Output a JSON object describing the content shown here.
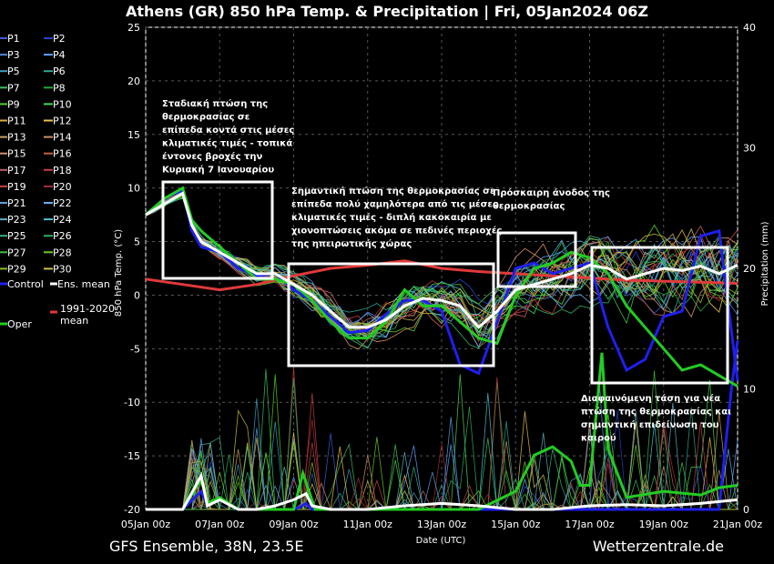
{
  "chart_data": {
    "type": "line",
    "title": "Athens  (GR)  850 hPa Temp. & Precipitation | Fri, 05Jan2024 06Z",
    "ylabel": "850 hPa Temp. (°C)",
    "y2label": "Precipitation (mm)",
    "xlabel": "Date (UTC)",
    "x_ticks": [
      "05Jan 00z",
      "07Jan 00z",
      "09Jan 00z",
      "11Jan 00z",
      "13Jan 00z",
      "15Jan 00z",
      "17Jan 00z",
      "19Jan 00z",
      "21Jan 00z"
    ],
    "ylim": [
      -20,
      25
    ],
    "y_ticks": [
      "25",
      "20",
      "15",
      "10",
      "5",
      "0",
      "-5",
      "-10",
      "-15",
      "-20"
    ],
    "y2lim": [
      0,
      40
    ],
    "y2_ticks": [
      "40",
      "30",
      "20",
      "10",
      "0"
    ],
    "x_hours_range": [
      0,
      384
    ],
    "grid": true,
    "legend_placement": "left",
    "legend": {
      "members": [
        "P1",
        "P2",
        "P3",
        "P4",
        "P5",
        "P6",
        "P7",
        "P8",
        "P9",
        "P10",
        "P11",
        "P12",
        "P13",
        "P14",
        "P15",
        "P16",
        "P17",
        "P18",
        "P19",
        "P20",
        "P21",
        "P22",
        "P23",
        "P24",
        "P25",
        "P26",
        "P27",
        "P28",
        "P29",
        "P30"
      ],
      "member_colors": [
        "#3a5ad6",
        "#2244cc",
        "#4a88d8",
        "#5aa0ff",
        "#3aa0c0",
        "#2aa890",
        "#3cc060",
        "#22aa33",
        "#55d020",
        "#4ad850",
        "#d8b040",
        "#e8c050",
        "#c8a060",
        "#d09060",
        "#d09070",
        "#c86040",
        "#c06060",
        "#c84040",
        "#c04040",
        "#a83030",
        "#5aa0e0",
        "#66b0f0",
        "#5ab0c0",
        "#4ac0d0",
        "#3ab080",
        "#2ab060",
        "#44c040",
        "#66cc22",
        "#88c020",
        "#c8c040"
      ],
      "control_label": "Control",
      "mean_label": "Ens. mean",
      "climate_label": "1991-2020 mean",
      "oper_label": "Oper"
    },
    "colors": {
      "control": "#1f1fee",
      "mean": "#ffffff",
      "climate": "#e03a3a",
      "oper": "#22cc22"
    },
    "series": [
      {
        "name": "Ens. mean",
        "hours": [
          0,
          12,
          24,
          30,
          36,
          48,
          60,
          72,
          84,
          96,
          108,
          120,
          132,
          144,
          156,
          168,
          180,
          192,
          204,
          216,
          228,
          240,
          252,
          264,
          276,
          288,
          300,
          312,
          324,
          336,
          348,
          360,
          372,
          384
        ],
        "values": [
          7.5,
          8.5,
          9.5,
          6.5,
          5,
          4,
          3,
          2,
          2,
          1,
          0,
          -1.5,
          -3,
          -3,
          -2.3,
          -1,
          -0.3,
          -0.5,
          -1,
          -3,
          -1.5,
          0.5,
          1,
          1.5,
          2,
          2.8,
          2.5,
          1.5,
          2,
          2.5,
          2.3,
          2.7,
          2,
          2.8
        ]
      },
      {
        "name": "Control",
        "hours": [
          0,
          12,
          24,
          30,
          36,
          48,
          60,
          72,
          84,
          96,
          108,
          120,
          132,
          144,
          156,
          168,
          180,
          192,
          204,
          216,
          228,
          240,
          252,
          264,
          276,
          288,
          300,
          312,
          324,
          336,
          348,
          360,
          372,
          384
        ],
        "values": [
          7.5,
          9,
          9.8,
          6,
          4.5,
          4,
          2.5,
          1.8,
          2,
          0.5,
          -0.5,
          -2,
          -3.5,
          -3.3,
          -1.8,
          -0.5,
          -0.5,
          -1.5,
          -6.5,
          -7.3,
          -2.5,
          2.5,
          3,
          2,
          2.5,
          3,
          -3,
          -7,
          -6,
          -2,
          -1.5,
          5.5,
          6,
          -8
        ]
      },
      {
        "name": "Oper",
        "hours": [
          0,
          12,
          24,
          30,
          36,
          48,
          60,
          72,
          84,
          96,
          108,
          120,
          132,
          144,
          156,
          168,
          180,
          192,
          204,
          216,
          228,
          240,
          252,
          264,
          276,
          288,
          300,
          312,
          324,
          336,
          348,
          360,
          372,
          384
        ],
        "values": [
          7.5,
          9,
          10,
          7,
          6,
          4.5,
          3,
          1.5,
          1.5,
          1,
          -0.5,
          -2.5,
          -4,
          -4,
          -2.5,
          0.5,
          -1,
          -1,
          -2.5,
          -4,
          -4.5,
          0,
          2.5,
          3,
          4,
          3.5,
          2,
          -1,
          -3,
          -5,
          -7,
          -6.5,
          -7.5,
          -8.5
        ]
      },
      {
        "name": "1991-2020 mean",
        "hours": [
          0,
          24,
          48,
          72,
          96,
          120,
          144,
          168,
          192,
          216,
          240,
          264,
          288,
          312,
          336,
          360,
          384
        ],
        "values": [
          1.5,
          1,
          0.5,
          1,
          1.8,
          2.5,
          2.8,
          3.2,
          2.5,
          2.2,
          2,
          1.8,
          1.6,
          1.4,
          1.3,
          1.2,
          1.1
        ]
      }
    ],
    "precip": {
      "mean": {
        "hours": [
          0,
          24,
          36,
          40,
          48,
          60,
          72,
          84,
          96,
          104,
          108,
          120,
          144,
          168,
          192,
          216,
          240,
          264,
          288,
          312,
          336,
          360,
          384
        ],
        "values": [
          0,
          0,
          2.8,
          0.3,
          0.8,
          0,
          0,
          0.3,
          0.8,
          1.3,
          0.3,
          0,
          0,
          0.3,
          0.5,
          0.3,
          0,
          0,
          0.3,
          0.4,
          0.3,
          0.5,
          0.8
        ]
      },
      "control": {
        "hours": [
          0,
          24,
          36,
          40,
          48,
          60,
          72,
          84,
          96,
          100,
          104,
          108,
          120,
          144,
          168,
          192,
          216,
          240,
          264,
          288,
          312,
          336,
          360,
          372,
          380,
          384
        ],
        "values": [
          0,
          0,
          1.5,
          0.3,
          0.8,
          0,
          0,
          0,
          0,
          0.2,
          0.5,
          0,
          0,
          0,
          0,
          0,
          0,
          0,
          0,
          0,
          0,
          0,
          0,
          0,
          10,
          14
        ]
      },
      "oper": {
        "hours": [
          0,
          24,
          36,
          40,
          48,
          60,
          72,
          84,
          96,
          102,
          106,
          110,
          120,
          144,
          168,
          192,
          216,
          240,
          252,
          264,
          276,
          282,
          288,
          296,
          300,
          312,
          336,
          360,
          372,
          384
        ],
        "values": [
          0,
          0,
          2.5,
          0.5,
          1,
          0,
          0,
          0,
          0,
          3,
          1.5,
          0,
          0,
          0,
          0,
          0,
          0,
          1.5,
          4.5,
          5.2,
          4,
          2,
          2,
          13,
          5,
          1,
          1.5,
          1.2,
          1.8,
          2
        ]
      }
    },
    "annotations": [
      [
        "Σταδιακή πτώση της",
        "θερμοκρασίας σε",
        "επίπεδα κοντά στις μέσες",
        "κλιματικές τιμές - τοπικά",
        "έντονες βροχές την",
        "Κυριακή 7 Ιανουαρίου"
      ],
      [
        "Σημαντική πτώση της θερμοκρασίας σε",
        "επίπεδα πολύ χαμηλότερα από τις μέσες",
        "κλιματικές τιμές - διπλή κακοκαιρία με",
        "χιονοπτώσεις ακόμα σε πεδινές περιοχές",
        "της ηπειρωτικής χώρας"
      ],
      [
        "Πρόσκαιρη άνοδος της",
        "θερμοκρασίας"
      ],
      [
        "Διαφαινόμενη τάση για νέα",
        "πτώση της θερμοκρασίας και",
        "σημαντική επιδείνωση του",
        "καιρού"
      ]
    ]
  },
  "footer": {
    "left": "GFS Ensemble, 38N, 23.5E",
    "right": "Wetterzentrale.de"
  }
}
